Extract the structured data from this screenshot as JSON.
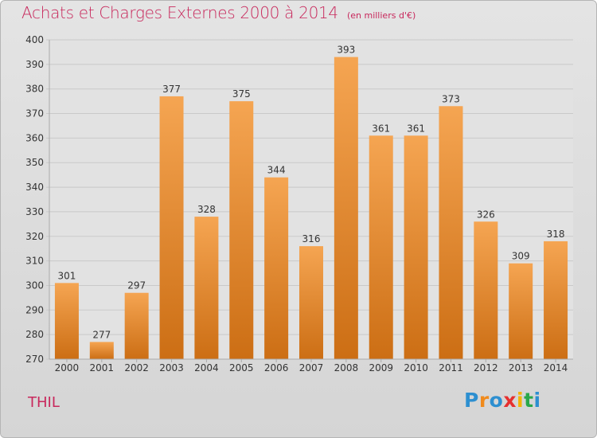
{
  "header": {
    "title": "Achats et Charges Externes 2000 à 2014",
    "unit": "(en milliers d'€)"
  },
  "footer": {
    "place": "THIL",
    "logo": "Proxiti"
  },
  "colors": {
    "bar_light": "#f5a552",
    "bar_dark": "#cc6e14",
    "title": "#c8285c",
    "grid": "#c9c9c9"
  },
  "chart_data": {
    "type": "bar",
    "categories": [
      "2000",
      "2001",
      "2002",
      "2003",
      "2004",
      "2005",
      "2006",
      "2007",
      "2008",
      "2009",
      "2010",
      "2011",
      "2012",
      "2013",
      "2014"
    ],
    "values": [
      301,
      277,
      297,
      377,
      328,
      375,
      344,
      316,
      393,
      361,
      361,
      373,
      326,
      309,
      318
    ],
    "ylim": [
      270,
      400
    ],
    "yticks": [
      270,
      280,
      290,
      300,
      310,
      320,
      330,
      340,
      350,
      360,
      370,
      380,
      390,
      400
    ],
    "grid": true,
    "data_labels": true
  }
}
